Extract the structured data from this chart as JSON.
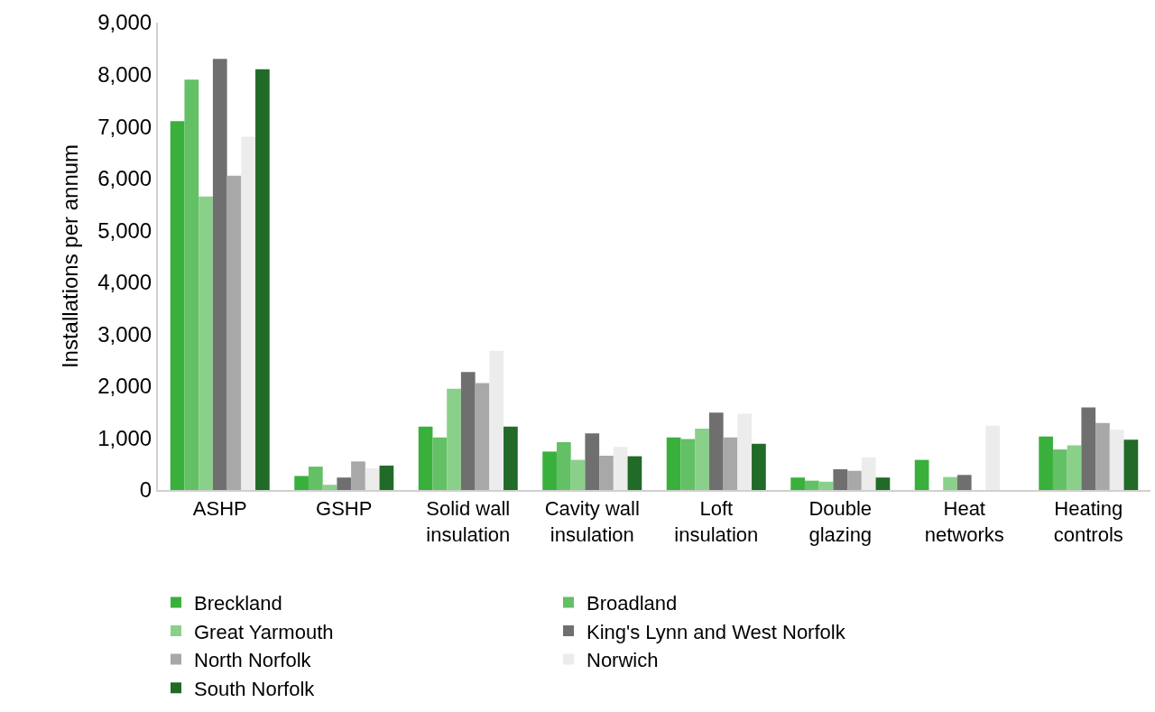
{
  "chart_data": {
    "type": "bar",
    "ylabel": "Installations per annum",
    "categories": [
      "ASHP",
      "GSHP",
      "Solid wall insulation",
      "Cavity wall insulation",
      "Loft insulation",
      "Double glazing",
      "Heat networks",
      "Heating controls"
    ],
    "series": [
      {
        "name": "Breckland",
        "color": "#39b03c",
        "values": [
          7100,
          270,
          1220,
          740,
          1010,
          240,
          580,
          1030
        ]
      },
      {
        "name": "Broadland",
        "color": "#63c064",
        "values": [
          7900,
          450,
          1010,
          920,
          980,
          180,
          0,
          780
        ]
      },
      {
        "name": "Great Yarmouth",
        "color": "#8ad08b",
        "values": [
          5650,
          100,
          1950,
          580,
          1180,
          160,
          250,
          860
        ]
      },
      {
        "name": "King's Lynn and West Norfolk",
        "color": "#6f6f6f",
        "values": [
          8300,
          240,
          2270,
          1090,
          1490,
          400,
          290,
          1590
        ]
      },
      {
        "name": "North Norfolk",
        "color": "#a8a8a8",
        "values": [
          6050,
          550,
          2060,
          660,
          1010,
          370,
          0,
          1290
        ]
      },
      {
        "name": "Norwich",
        "color": "#ececec",
        "values": [
          6800,
          420,
          2680,
          830,
          1470,
          630,
          1240,
          1160
        ]
      },
      {
        "name": "South Norfolk",
        "color": "#226a27",
        "values": [
          8100,
          470,
          1220,
          650,
          890,
          240,
          0,
          970
        ]
      }
    ],
    "ylim": [
      0,
      9000
    ],
    "yticks": [
      {
        "value": 0,
        "label": "0"
      },
      {
        "value": 1000,
        "label": "1,000"
      },
      {
        "value": 2000,
        "label": "2,000"
      },
      {
        "value": 3000,
        "label": "3,000"
      },
      {
        "value": 4000,
        "label": "4,000"
      },
      {
        "value": 5000,
        "label": "5,000"
      },
      {
        "value": 6000,
        "label": "6,000"
      },
      {
        "value": 7000,
        "label": "7,000"
      },
      {
        "value": 8000,
        "label": "8,000"
      },
      {
        "value": 9000,
        "label": "9,000"
      }
    ],
    "grid": false,
    "legend": "bottom"
  }
}
